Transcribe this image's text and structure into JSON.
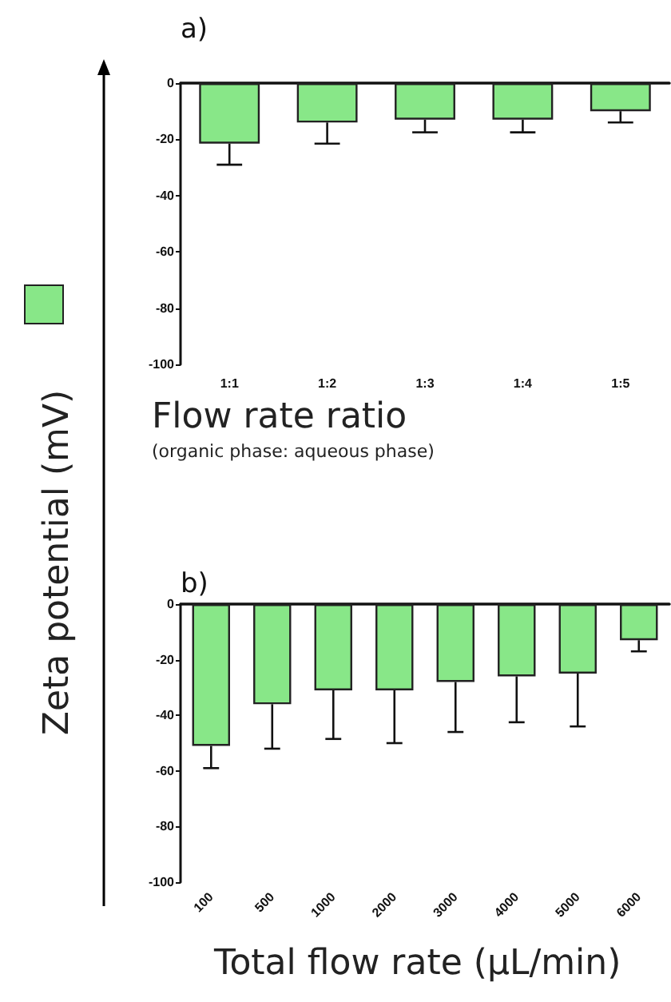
{
  "chart_data": [
    {
      "type": "bar",
      "title": "a)",
      "ylabel": "Zeta potential (mV)",
      "xlabel": "Flow rate ratio",
      "annotations": [
        "(organic phase: aqueous phase)"
      ],
      "categories": [
        "1:1",
        "1:2",
        "1:3",
        "1:4",
        "1:5"
      ],
      "series": [
        {
          "color": "#88e788",
          "values": [
            -21.5,
            -14,
            -13,
            -13,
            -10
          ],
          "errors": [
            7.5,
            7.5,
            4.5,
            4.5,
            4
          ]
        }
      ],
      "ylim": [
        -100,
        0
      ],
      "yticks": [
        -100,
        -80,
        -60,
        -40,
        -20,
        0
      ],
      "grid": false
    },
    {
      "type": "bar",
      "title": "b)",
      "xlabel": "Total flow rate (µL/min)",
      "categories": [
        "100",
        "500",
        "1000",
        "2000",
        "3000",
        "4000",
        "5000",
        "6000"
      ],
      "series": [
        {
          "color": "#88e788",
          "values": [
            -51,
            -36,
            -31,
            -31,
            -28,
            -26,
            -25,
            -13
          ],
          "errors": [
            8,
            16,
            17.5,
            19,
            18,
            16.5,
            19,
            4
          ]
        }
      ],
      "ylim": [
        -100,
        0
      ],
      "yticks": [
        -100,
        -80,
        -60,
        -40,
        -20,
        0
      ],
      "grid": false
    }
  ]
}
